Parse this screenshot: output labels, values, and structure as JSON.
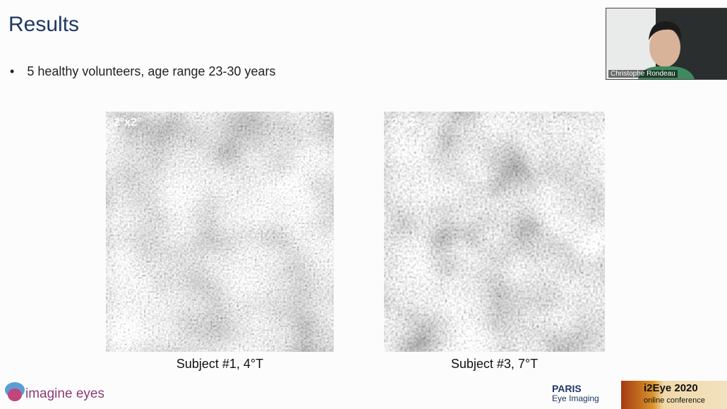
{
  "slide": {
    "title": "Results",
    "bullets": [
      "5 healthy volunteers, age range 23-30 years"
    ],
    "images": [
      {
        "label": "2°x2°",
        "caption": "Subject #1, 4°T"
      },
      {
        "label": "2°x2°",
        "caption": "Subject #3, 7°T"
      }
    ]
  },
  "webcam": {
    "name": "Christophe Rondeau"
  },
  "footer": {
    "left_logo": "imagine eyes",
    "paris_logo": "PARIS",
    "paris_sub": "Eye Imaging",
    "conference_title": "i2Eye 2020",
    "conference_sub": "online conference"
  }
}
